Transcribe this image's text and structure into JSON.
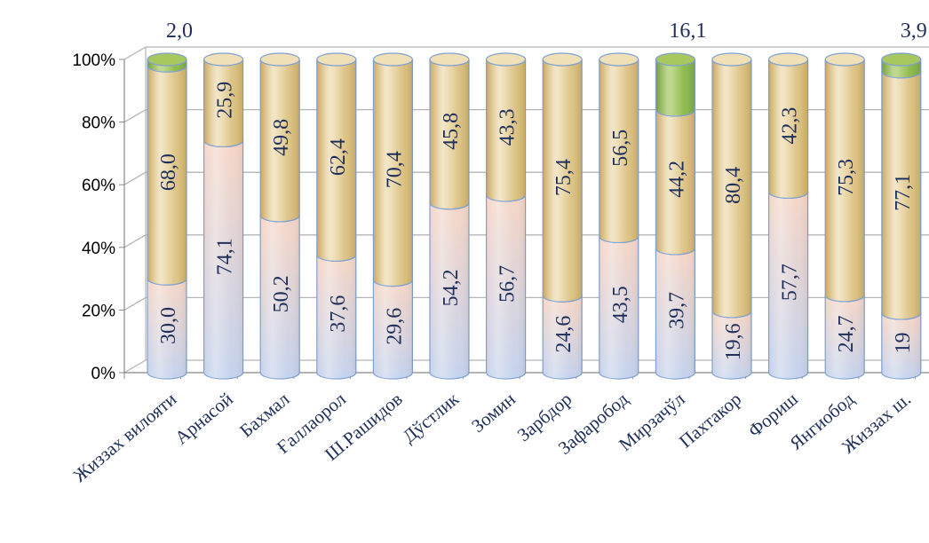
{
  "chart_data": {
    "type": "bar",
    "stacked": true,
    "percent": true,
    "style": "3d-cylinder",
    "categories": [
      "Жиззах вилояти",
      "Арнасой",
      "Бахмал",
      "Ғаллаорол",
      "Ш.Рашидов",
      "Дўстлик",
      "Зомин",
      "Зарбдор",
      "Зафаробод",
      "Мирзачўл",
      "Пахтакор",
      "Фориш",
      "Янгиобод",
      "Жиззах ш."
    ],
    "series": [
      {
        "values": [
          30.0,
          74.1,
          50.2,
          37.6,
          29.6,
          54.2,
          56.7,
          24.6,
          43.5,
          39.7,
          19.6,
          57.7,
          24.7,
          19
        ],
        "labels": [
          "30,0",
          "74,1",
          "50,2",
          "37,6",
          "29,6",
          "54,2",
          "56,7",
          "24,6",
          "43,5",
          "39,7",
          "19,6",
          "57,7",
          "24,7",
          "19"
        ],
        "color": "#c9d6ee",
        "top_color": "#dbe4f4"
      },
      {
        "values": [
          68.0,
          25.9,
          49.8,
          62.4,
          70.4,
          45.8,
          43.3,
          75.4,
          56.5,
          44.2,
          80.4,
          42.3,
          75.3,
          77.1
        ],
        "labels": [
          "68,0",
          "25,9",
          "49,8",
          "62,4",
          "70,4",
          "45,8",
          "43,3",
          "75,4",
          "56,5",
          "44,2",
          "80,4",
          "42,3",
          "75,3",
          "77,1"
        ],
        "color": "#d9bf78",
        "top_color": "#efe0b8"
      },
      {
        "values": [
          2.0,
          0,
          0,
          0,
          0,
          0,
          0,
          0,
          0,
          16.1,
          0,
          0,
          0,
          3.9
        ],
        "labels": [
          "2,0",
          "",
          "",
          "",
          "",
          "",
          "",
          "",
          "",
          "16,1",
          "",
          "",
          "",
          "3,9"
        ],
        "color": "#8fb648",
        "top_color": "#a6c85e"
      }
    ],
    "y_ticks": [
      "0%",
      "20%",
      "40%",
      "60%",
      "80%",
      "100%"
    ],
    "ylim": [
      0,
      100
    ],
    "grid": true
  },
  "colors": {
    "series1_bottom": "#c9d6ee",
    "series1_top": "#f7d7c4",
    "series2": "#d9bf78",
    "series3": "#8fb648",
    "text": "#1f2f5a",
    "grid": "#b5b5b5"
  }
}
